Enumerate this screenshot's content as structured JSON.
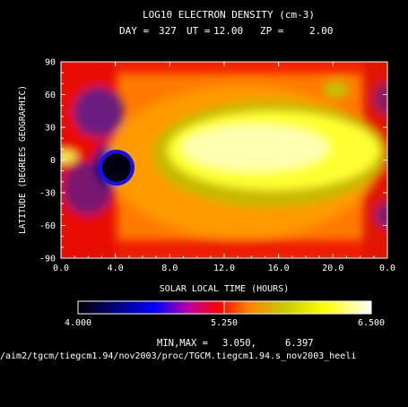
{
  "chart_data": {
    "type": "heatmap",
    "title": "LOG10 ELECTRON DENSITY (cm-3)",
    "subtitle": {
      "day_label": "DAY =",
      "day": "327",
      "ut_label": "UT =",
      "ut": "12.00",
      "zp_label": "ZP =",
      "zp": "2.00"
    },
    "xlabel": "SOLAR LOCAL TIME (HOURS)",
    "ylabel": "LATITUDE (DEGREES GEOGRAPHIC)",
    "xlim": [
      0,
      24
    ],
    "ylim": [
      -90,
      90
    ],
    "x_ticks": [
      "0.0",
      "4.0",
      "8.0",
      "12.0",
      "16.0",
      "20.0",
      "0.0"
    ],
    "y_ticks": [
      "90",
      "60",
      "30",
      "0",
      "-30",
      "-60",
      "-90"
    ],
    "colorbar": {
      "min": 4.0,
      "max": 6.5,
      "tick_labels": [
        "4.000",
        "5.250",
        "6.500"
      ],
      "colors": [
        "#000000",
        "#0000b0",
        "#0000ff",
        "#ff0000",
        "#ff8000",
        "#c8c800",
        "#ffff00",
        "#ffffff"
      ]
    },
    "minmax_label": "MIN,MAX =",
    "min_value": "3.050,",
    "max_value": "6.397",
    "source_path": "/aim2/tgcm/tiegcm1.94/nov2003/proc/TGCM.tiegcm1.94.s_nov2003_heeli"
  }
}
